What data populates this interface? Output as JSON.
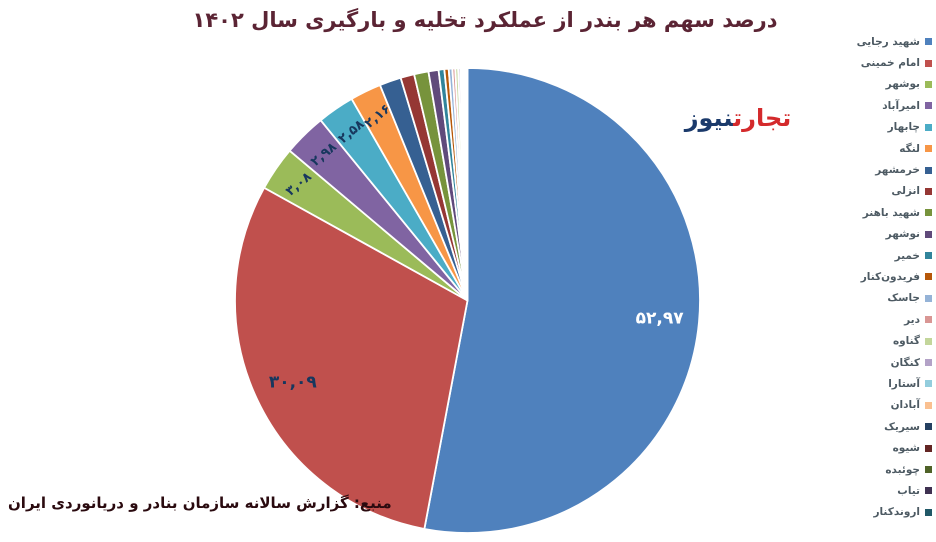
{
  "title": "درصد سهم هر بندر از عملکرد تخلیه و بارگیری سال ۱۴۰۲",
  "logo": {
    "part_red": "تجارت",
    "part_navy": "نیوز"
  },
  "source": "منبع: گزارش سالانه سازمان بنادر و دریانوردی ایران",
  "colors": {
    "title": "#5b2434",
    "source": "#2a0a0f",
    "logo_red": "#d42a2c",
    "logo_navy": "#1b3a6b",
    "legend_text": "#4d5a63",
    "label_dark": "#17375e",
    "label_light": "#ffffff",
    "slice_separator": "#ffffff"
  },
  "chart_data": {
    "type": "pie",
    "title": "درصد سهم هر بندر از عملکرد تخلیه و بارگیری سال ۱۴۰۲",
    "legend_position": "right",
    "start_angle_deg": 0,
    "direction": "clockwise",
    "unit": "percent",
    "slices": [
      {
        "name": "شهید رجایی",
        "value": 52.97,
        "label": "۵۲,۹۷",
        "color": "#4F81BD",
        "labeled": true
      },
      {
        "name": "امام خمینی",
        "value": 30.09,
        "label": "۳۰,۰۹",
        "color": "#C0504D",
        "labeled": true
      },
      {
        "name": "بوشهر",
        "value": 3.08,
        "label": "۳,۰۸",
        "color": "#9BBB59",
        "labeled": true
      },
      {
        "name": "امیرآباد",
        "value": 2.98,
        "label": "۲,۹۸",
        "color": "#8064A2",
        "labeled": true
      },
      {
        "name": "چابهار",
        "value": 2.58,
        "label": "۲,۵۸",
        "color": "#4BACC6",
        "labeled": true
      },
      {
        "name": "لنگه",
        "value": 2.16,
        "label": "۲,۱۶",
        "color": "#F79646",
        "labeled": true
      },
      {
        "name": "خرمشهر",
        "value": 1.5,
        "label": "",
        "color": "#366092",
        "labeled": false
      },
      {
        "name": "انزلی",
        "value": 0.95,
        "label": "",
        "color": "#953734",
        "labeled": false
      },
      {
        "name": "شهید باهنر",
        "value": 1.0,
        "label": "",
        "color": "#77933C",
        "labeled": false
      },
      {
        "name": "نوشهر",
        "value": 0.7,
        "label": "",
        "color": "#604A7B",
        "labeled": false
      },
      {
        "name": "خمیر",
        "value": 0.4,
        "label": "",
        "color": "#31849B",
        "labeled": false
      },
      {
        "name": "فریدون‌کنار",
        "value": 0.3,
        "label": "",
        "color": "#B65708",
        "labeled": false
      },
      {
        "name": "جاسک",
        "value": 0.25,
        "label": "",
        "color": "#95B3D7",
        "labeled": false
      },
      {
        "name": "دیر",
        "value": 0.2,
        "label": "",
        "color": "#D99694",
        "labeled": false
      },
      {
        "name": "گناوه",
        "value": 0.2,
        "label": "",
        "color": "#C3D69B",
        "labeled": false
      },
      {
        "name": "کنگان",
        "value": 0.15,
        "label": "",
        "color": "#B3A2C7",
        "labeled": false
      },
      {
        "name": "آستارا",
        "value": 0.12,
        "label": "",
        "color": "#93CDDD",
        "labeled": false
      },
      {
        "name": "آبادان",
        "value": 0.1,
        "label": "",
        "color": "#FAC090",
        "labeled": false
      },
      {
        "name": "سیریک",
        "value": 0.08,
        "label": "",
        "color": "#254061",
        "labeled": false
      },
      {
        "name": "شیوه",
        "value": 0.05,
        "label": "",
        "color": "#632523",
        "labeled": false
      },
      {
        "name": "چوئبده",
        "value": 0.05,
        "label": "",
        "color": "#4F6228",
        "labeled": false
      },
      {
        "name": "تیاب",
        "value": 0.05,
        "label": "",
        "color": "#3F3151",
        "labeled": false
      },
      {
        "name": "اروندکنار",
        "value": 0.04,
        "label": "",
        "color": "#205867",
        "labeled": false
      }
    ]
  }
}
